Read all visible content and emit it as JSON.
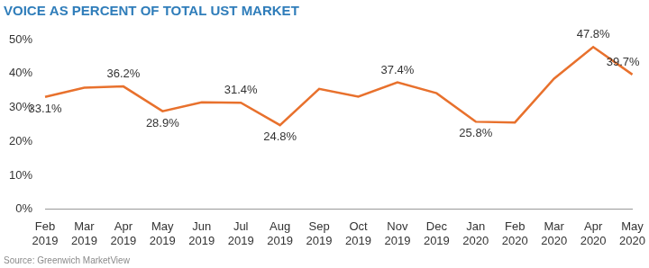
{
  "chart_data": {
    "type": "line",
    "title": "VOICE AS PERCENT OF TOTAL UST MARKET",
    "source": "Source: Greenwich MarketView",
    "categories": [
      "Feb 2019",
      "Mar 2019",
      "Apr 2019",
      "May 2019",
      "Jun 2019",
      "Jul 2019",
      "Aug 2019",
      "Sep 2019",
      "Oct 2019",
      "Nov 2019",
      "Dec 2019",
      "Jan 2020",
      "Feb 2020",
      "Mar 2020",
      "Apr 2020",
      "May 2020"
    ],
    "values": [
      33.1,
      35.8,
      36.2,
      28.9,
      31.5,
      31.4,
      24.8,
      35.5,
      33.2,
      37.4,
      34.2,
      25.8,
      25.6,
      38.5,
      47.8,
      39.7
    ],
    "value_labels": [
      "33.1%",
      null,
      "36.2%",
      "28.9%",
      null,
      "31.4%",
      "24.8%",
      null,
      null,
      "37.4%",
      null,
      "25.8%",
      null,
      null,
      "47.8%",
      "39.7%"
    ],
    "color": "#e8712d",
    "marker": "none",
    "ylim": [
      0,
      50
    ],
    "yticks": [
      {
        "value": 0,
        "label": "0%"
      },
      {
        "value": 10,
        "label": "10%"
      },
      {
        "value": 20,
        "label": "20%"
      },
      {
        "value": 30,
        "label": "30%"
      },
      {
        "value": 40,
        "label": "40%"
      },
      {
        "value": 50,
        "label": "50%"
      }
    ],
    "grid": false,
    "data_labels": true
  }
}
